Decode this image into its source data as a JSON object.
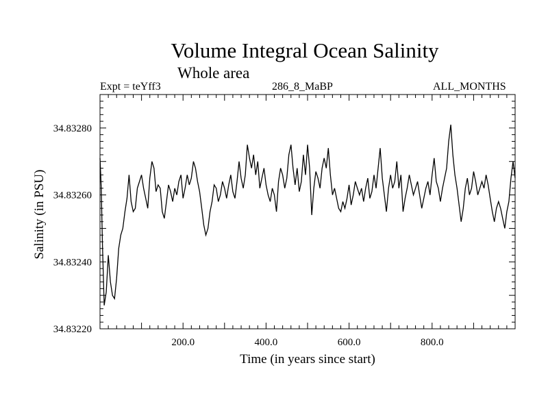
{
  "header": {
    "title": "Volume Integral Ocean Salinity",
    "subtitle": "Whole area",
    "expt": "Expt = teYff3",
    "period": "286_8_MaBP",
    "months": "ALL_MONTHS"
  },
  "chart_data": {
    "type": "line",
    "title": "Volume Integral Ocean Salinity",
    "subtitle": "Whole area",
    "xlabel": "Time (in years since start)",
    "ylabel": "Salinity (in PSU)",
    "xlim": [
      0,
      1000
    ],
    "ylim": [
      34.8322,
      34.8329
    ],
    "xticks": [
      200.0,
      400.0,
      600.0,
      800.0
    ],
    "xtick_labels": [
      "200.0",
      "400.0",
      "600.0",
      "800.0"
    ],
    "yticks": [
      34.8322,
      34.8324,
      34.8326,
      34.8328
    ],
    "ytick_labels": [
      "34.83220",
      "34.83240",
      "34.83260",
      "34.83280"
    ],
    "grid": false,
    "series": [
      {
        "name": "Salinity",
        "x": [
          0,
          3,
          6,
          10,
          15,
          20,
          25,
          30,
          35,
          40,
          45,
          50,
          55,
          60,
          65,
          70,
          75,
          80,
          85,
          90,
          95,
          100,
          105,
          110,
          115,
          120,
          125,
          130,
          135,
          140,
          145,
          150,
          155,
          160,
          165,
          170,
          175,
          180,
          185,
          190,
          195,
          200,
          205,
          210,
          215,
          220,
          225,
          230,
          235,
          240,
          245,
          250,
          255,
          260,
          265,
          270,
          275,
          280,
          285,
          290,
          295,
          300,
          305,
          310,
          315,
          320,
          325,
          330,
          335,
          340,
          345,
          350,
          355,
          360,
          365,
          370,
          375,
          380,
          385,
          390,
          395,
          400,
          405,
          410,
          415,
          420,
          425,
          430,
          435,
          440,
          445,
          450,
          455,
          460,
          465,
          470,
          475,
          480,
          485,
          490,
          495,
          500,
          505,
          510,
          515,
          520,
          525,
          530,
          535,
          540,
          545,
          550,
          555,
          560,
          565,
          570,
          575,
          580,
          585,
          590,
          595,
          600,
          605,
          610,
          615,
          620,
          625,
          630,
          635,
          640,
          645,
          650,
          655,
          660,
          665,
          670,
          675,
          680,
          685,
          690,
          695,
          700,
          705,
          710,
          715,
          720,
          725,
          730,
          735,
          740,
          745,
          750,
          755,
          760,
          765,
          770,
          775,
          780,
          785,
          790,
          795,
          800,
          805,
          810,
          815,
          820,
          825,
          830,
          835,
          840,
          845,
          850,
          855,
          860,
          865,
          870,
          875,
          880,
          885,
          890,
          895,
          900,
          905,
          910,
          915,
          920,
          925,
          930,
          935,
          940,
          945,
          950,
          955,
          960,
          965,
          970,
          975,
          980,
          985,
          990,
          995,
          1000
        ],
        "y": [
          34.83271,
          34.83262,
          34.83245,
          34.83227,
          34.83231,
          34.83242,
          34.83234,
          34.8323,
          34.83229,
          34.83235,
          34.83244,
          34.83248,
          34.8325,
          34.83255,
          34.83259,
          34.83266,
          34.83258,
          34.83255,
          34.83256,
          34.83262,
          34.83264,
          34.83266,
          34.83262,
          34.83259,
          34.83256,
          34.83265,
          34.8327,
          34.83268,
          34.83261,
          34.83263,
          34.83262,
          34.83255,
          34.83253,
          34.83258,
          34.83263,
          34.83261,
          34.83258,
          34.83262,
          34.8326,
          34.83264,
          34.83266,
          34.83259,
          34.83262,
          34.83266,
          34.83263,
          34.83265,
          34.8327,
          34.83268,
          34.83264,
          34.83261,
          34.83256,
          34.83251,
          34.83248,
          34.8325,
          34.83255,
          34.83258,
          34.83263,
          34.83262,
          34.83258,
          34.8326,
          34.83264,
          34.83262,
          34.83259,
          34.83263,
          34.83266,
          34.83261,
          34.83259,
          34.83264,
          34.8327,
          34.83265,
          34.83262,
          34.83266,
          34.83275,
          34.83271,
          34.83268,
          34.83272,
          34.83266,
          34.8327,
          34.83262,
          34.83265,
          34.83268,
          34.83263,
          34.8326,
          34.83258,
          34.83262,
          34.8326,
          34.83255,
          34.83264,
          34.83268,
          34.83266,
          34.83262,
          34.83265,
          34.83272,
          34.83275,
          34.83268,
          34.83263,
          34.83268,
          34.83261,
          34.83264,
          34.83272,
          34.83266,
          34.83275,
          34.83268,
          34.83254,
          34.83262,
          34.83267,
          34.83265,
          34.83262,
          34.83268,
          34.83271,
          34.83268,
          34.83274,
          34.83266,
          34.8326,
          34.83262,
          34.83259,
          34.83256,
          34.83255,
          34.83258,
          34.83256,
          34.83259,
          34.83263,
          34.83257,
          34.8326,
          34.83264,
          34.83262,
          34.8326,
          34.83262,
          34.83258,
          34.83262,
          34.83265,
          34.83259,
          34.83261,
          34.83266,
          34.83262,
          34.83268,
          34.83274,
          34.83265,
          34.8326,
          34.83255,
          34.83262,
          34.83266,
          34.83262,
          34.83264,
          34.8327,
          34.83262,
          34.83266,
          34.83255,
          34.83259,
          34.83262,
          34.83266,
          34.83263,
          34.8326,
          34.83262,
          34.83264,
          34.8326,
          34.83256,
          34.83259,
          34.83262,
          34.83264,
          34.8326,
          34.83266,
          34.83271,
          34.83264,
          34.83262,
          34.83258,
          34.83262,
          34.83265,
          34.83268,
          34.83276,
          34.83281,
          34.83272,
          34.83266,
          34.83262,
          34.83257,
          34.83252,
          34.83256,
          34.83262,
          34.83265,
          34.8326,
          34.83262,
          34.83267,
          34.83264,
          34.8326,
          34.83262,
          34.83264,
          34.83262,
          34.83266,
          34.83263,
          34.83259,
          34.83255,
          34.83252,
          34.83256,
          34.83258,
          34.83256,
          34.83253,
          34.8325,
          34.83255,
          34.83258,
          34.83265,
          34.8327,
          34.83265
        ]
      }
    ]
  }
}
